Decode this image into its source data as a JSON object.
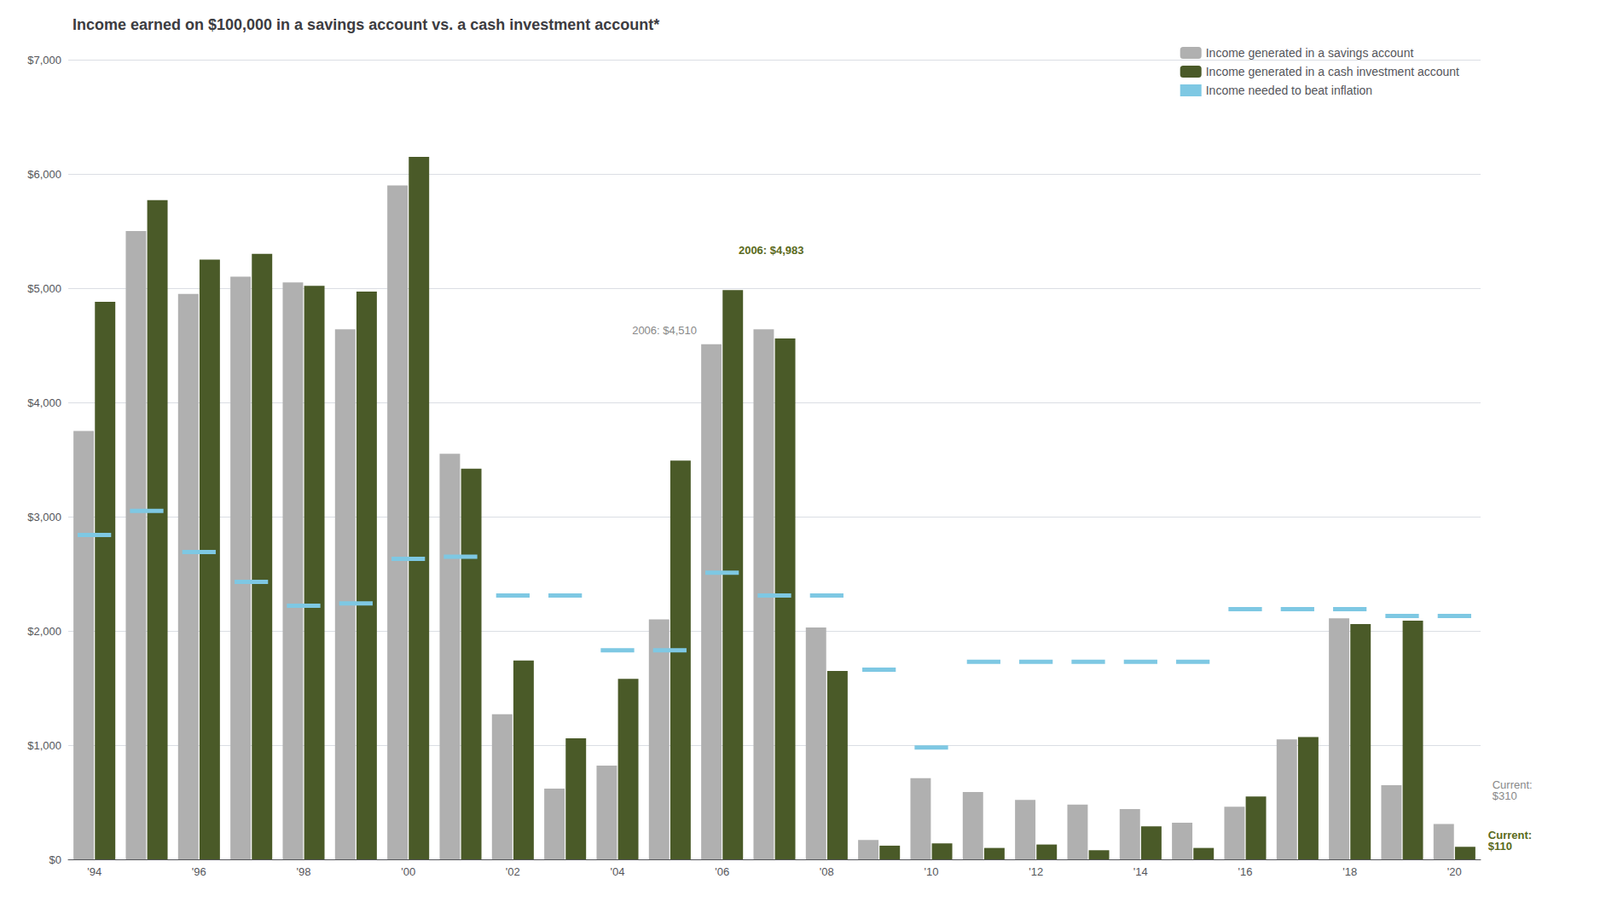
{
  "chart_data": {
    "type": "bar",
    "title": "Income earned on $100,000 in a savings account vs. a cash investment account*",
    "categories": [
      "'94",
      null,
      "'96",
      null,
      "'98",
      null,
      "'00",
      null,
      "'02",
      null,
      "'04",
      null,
      "'06",
      null,
      "'08",
      null,
      "'10",
      null,
      "'12",
      null,
      "'14",
      null,
      "'16",
      null,
      "'18",
      null,
      "'20"
    ],
    "series": [
      {
        "name": "Income generated in a savings account",
        "type": "bar",
        "color": "#b0b0b0",
        "values": [
          3750,
          5500,
          4950,
          5100,
          5050,
          4640,
          5900,
          3550,
          1270,
          620,
          820,
          2100,
          4510,
          4640,
          2030,
          170,
          710,
          590,
          520,
          480,
          440,
          320,
          460,
          1050,
          2110,
          650,
          310
        ]
      },
      {
        "name": "Income generated in a cash investment account",
        "type": "bar",
        "color": "#4a5a28",
        "values": [
          4880,
          5770,
          5250,
          5300,
          5020,
          4970,
          6150,
          3420,
          1740,
          1060,
          1580,
          3490,
          4983,
          4560,
          1650,
          120,
          140,
          100,
          130,
          80,
          290,
          100,
          550,
          1070,
          2060,
          2090,
          110
        ]
      },
      {
        "name": "Income needed to beat inflation",
        "type": "segment",
        "color": "#7ec8e3",
        "values": [
          2840,
          3050,
          2690,
          2430,
          2220,
          2240,
          2630,
          2650,
          2310,
          2310,
          1830,
          1830,
          2510,
          2310,
          2310,
          1660,
          980,
          1730,
          1730,
          1730,
          1730,
          1730,
          2190,
          2190,
          2190,
          2130,
          2130
        ]
      }
    ],
    "ylim": [
      0,
      7000
    ],
    "yticks": [
      {
        "value": 0,
        "label": "$0"
      },
      {
        "value": 1000,
        "label": "$1,000"
      },
      {
        "value": 2000,
        "label": "$2,000"
      },
      {
        "value": 3000,
        "label": "$3,000"
      },
      {
        "value": 4000,
        "label": "$4,000"
      },
      {
        "value": 5000,
        "label": "$5,000"
      },
      {
        "value": 6000,
        "label": "$6,000"
      },
      {
        "value": 7000,
        "label": "$7,000"
      }
    ],
    "grid": true,
    "legend": "upper right",
    "annotations": [
      {
        "text": "2006: $4,510",
        "series": "Income generated in a savings account",
        "category": "'06"
      },
      {
        "text": "2006: $4,983",
        "series": "Income generated in a cash investment account",
        "category": "'06"
      },
      {
        "text": "Current:\n$310",
        "series": "Income generated in a savings account",
        "category": "'20"
      },
      {
        "text": "Current:\n$110",
        "series": "Income generated in a cash investment account",
        "category": "'20"
      }
    ]
  }
}
